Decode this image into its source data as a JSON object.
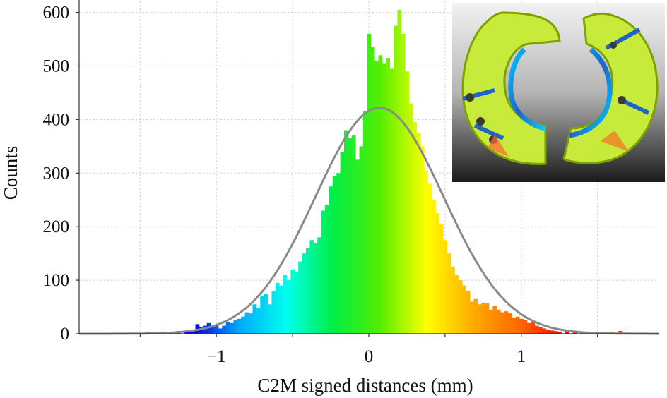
{
  "chart_data": {
    "type": "bar",
    "xlabel": "C2M signed distances (mm)",
    "ylabel": "Counts",
    "xlim": [
      -1.9,
      1.9
    ],
    "ylim": [
      0,
      610
    ],
    "xticks": [
      -1,
      0,
      1
    ],
    "xtick_labels": [
      "−1",
      "0",
      "1"
    ],
    "yticks": [
      0,
      100,
      200,
      300,
      400,
      500,
      600
    ],
    "ytick_labels": [
      "0",
      "100",
      "200",
      "300",
      "400",
      "500",
      "600"
    ],
    "grid": true,
    "legend": "none",
    "bin_width": 0.025,
    "bins": [
      {
        "x": -1.5,
        "y": 2
      },
      {
        "x": -1.45,
        "y": 3
      },
      {
        "x": -1.4,
        "y": 2
      },
      {
        "x": -1.35,
        "y": 4
      },
      {
        "x": -1.3,
        "y": 3
      },
      {
        "x": -1.25,
        "y": 5
      },
      {
        "x": -1.2,
        "y": 4
      },
      {
        "x": -1.175,
        "y": 6
      },
      {
        "x": -1.15,
        "y": 5
      },
      {
        "x": -1.125,
        "y": 18
      },
      {
        "x": -1.1,
        "y": 12
      },
      {
        "x": -1.075,
        "y": 15
      },
      {
        "x": -1.05,
        "y": 20
      },
      {
        "x": -1.025,
        "y": 12
      },
      {
        "x": -1.0,
        "y": 16
      },
      {
        "x": -0.975,
        "y": 10
      },
      {
        "x": -0.95,
        "y": 15
      },
      {
        "x": -0.925,
        "y": 22
      },
      {
        "x": -0.9,
        "y": 20
      },
      {
        "x": -0.875,
        "y": 25
      },
      {
        "x": -0.85,
        "y": 28
      },
      {
        "x": -0.825,
        "y": 32
      },
      {
        "x": -0.8,
        "y": 40
      },
      {
        "x": -0.775,
        "y": 38
      },
      {
        "x": -0.75,
        "y": 55
      },
      {
        "x": -0.725,
        "y": 48
      },
      {
        "x": -0.7,
        "y": 70
      },
      {
        "x": -0.675,
        "y": 75
      },
      {
        "x": -0.65,
        "y": 55
      },
      {
        "x": -0.625,
        "y": 80
      },
      {
        "x": -0.6,
        "y": 95
      },
      {
        "x": -0.575,
        "y": 90
      },
      {
        "x": -0.55,
        "y": 110
      },
      {
        "x": -0.525,
        "y": 100
      },
      {
        "x": -0.5,
        "y": 120
      },
      {
        "x": -0.475,
        "y": 115
      },
      {
        "x": -0.45,
        "y": 135
      },
      {
        "x": -0.425,
        "y": 150
      },
      {
        "x": -0.4,
        "y": 160
      },
      {
        "x": -0.375,
        "y": 175
      },
      {
        "x": -0.35,
        "y": 170
      },
      {
        "x": -0.325,
        "y": 180
      },
      {
        "x": -0.3,
        "y": 230
      },
      {
        "x": -0.275,
        "y": 240
      },
      {
        "x": -0.25,
        "y": 275
      },
      {
        "x": -0.225,
        "y": 295
      },
      {
        "x": -0.2,
        "y": 300
      },
      {
        "x": -0.175,
        "y": 340
      },
      {
        "x": -0.15,
        "y": 380
      },
      {
        "x": -0.125,
        "y": 365
      },
      {
        "x": -0.1,
        "y": 370
      },
      {
        "x": -0.075,
        "y": 325
      },
      {
        "x": -0.05,
        "y": 350
      },
      {
        "x": -0.025,
        "y": 415
      },
      {
        "x": 0.0,
        "y": 560
      },
      {
        "x": 0.025,
        "y": 535
      },
      {
        "x": 0.05,
        "y": 510
      },
      {
        "x": 0.075,
        "y": 520
      },
      {
        "x": 0.1,
        "y": 505
      },
      {
        "x": 0.125,
        "y": 515
      },
      {
        "x": 0.15,
        "y": 495
      },
      {
        "x": 0.175,
        "y": 575
      },
      {
        "x": 0.2,
        "y": 605
      },
      {
        "x": 0.225,
        "y": 560
      },
      {
        "x": 0.25,
        "y": 490
      },
      {
        "x": 0.275,
        "y": 430
      },
      {
        "x": 0.3,
        "y": 395
      },
      {
        "x": 0.325,
        "y": 375
      },
      {
        "x": 0.35,
        "y": 350
      },
      {
        "x": 0.375,
        "y": 305
      },
      {
        "x": 0.4,
        "y": 280
      },
      {
        "x": 0.425,
        "y": 250
      },
      {
        "x": 0.45,
        "y": 225
      },
      {
        "x": 0.475,
        "y": 205
      },
      {
        "x": 0.5,
        "y": 175
      },
      {
        "x": 0.525,
        "y": 150
      },
      {
        "x": 0.55,
        "y": 125
      },
      {
        "x": 0.575,
        "y": 110
      },
      {
        "x": 0.6,
        "y": 100
      },
      {
        "x": 0.625,
        "y": 90
      },
      {
        "x": 0.65,
        "y": 80
      },
      {
        "x": 0.675,
        "y": 60
      },
      {
        "x": 0.7,
        "y": 65
      },
      {
        "x": 0.725,
        "y": 55
      },
      {
        "x": 0.75,
        "y": 58
      },
      {
        "x": 0.775,
        "y": 57
      },
      {
        "x": 0.8,
        "y": 45
      },
      {
        "x": 0.825,
        "y": 52
      },
      {
        "x": 0.85,
        "y": 45
      },
      {
        "x": 0.875,
        "y": 40
      },
      {
        "x": 0.9,
        "y": 42
      },
      {
        "x": 0.925,
        "y": 38
      },
      {
        "x": 0.95,
        "y": 30
      },
      {
        "x": 0.975,
        "y": 32
      },
      {
        "x": 1.0,
        "y": 28
      },
      {
        "x": 1.025,
        "y": 25
      },
      {
        "x": 1.05,
        "y": 20
      },
      {
        "x": 1.075,
        "y": 22
      },
      {
        "x": 1.1,
        "y": 15
      },
      {
        "x": 1.125,
        "y": 12
      },
      {
        "x": 1.15,
        "y": 10
      },
      {
        "x": 1.175,
        "y": 8
      },
      {
        "x": 1.2,
        "y": 6
      },
      {
        "x": 1.225,
        "y": 5
      },
      {
        "x": 1.25,
        "y": 4
      },
      {
        "x": 1.3,
        "y": 8
      },
      {
        "x": 1.35,
        "y": 5
      },
      {
        "x": 1.4,
        "y": 4
      },
      {
        "x": 1.45,
        "y": 3
      },
      {
        "x": 1.5,
        "y": 2
      },
      {
        "x": 1.6,
        "y": 3
      },
      {
        "x": 1.65,
        "y": 5
      },
      {
        "x": 1.8,
        "y": 2
      }
    ],
    "fit_curve": {
      "type": "gaussian",
      "mean": 0.07,
      "sigma": 0.42,
      "peak": 422,
      "color": "#8a8a8a"
    },
    "color_scale": [
      "#0000dd",
      "#00aaff",
      "#00ffee",
      "#00ee44",
      "#55ee00",
      "#ffff00",
      "#ffaa00",
      "#ff6600",
      "#ee0000"
    ]
  }
}
